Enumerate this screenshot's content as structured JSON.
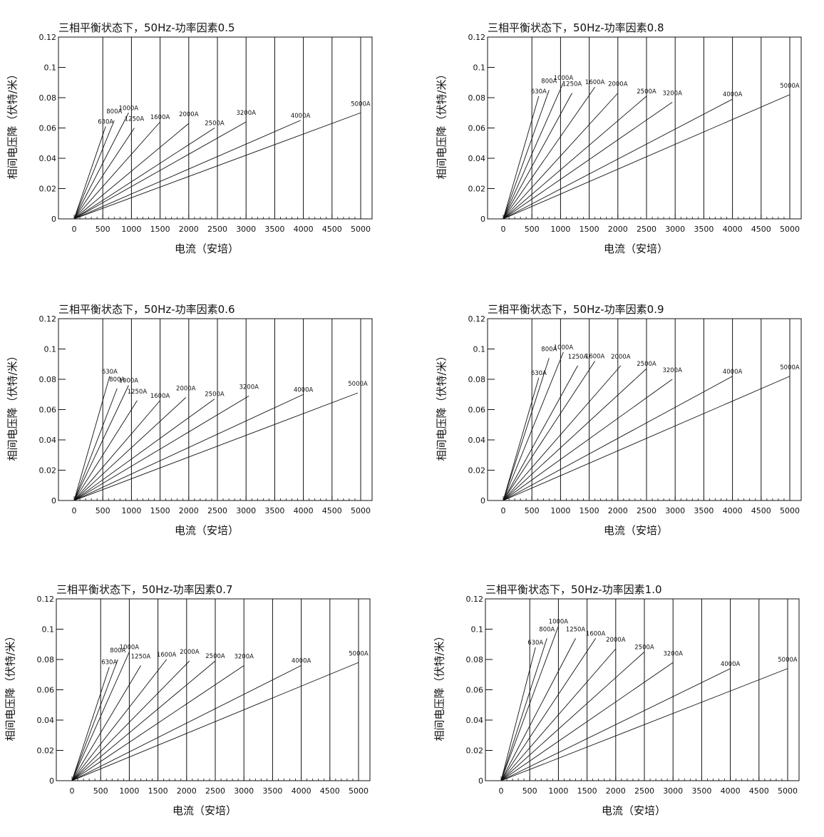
{
  "chart_data": [
    {
      "type": "line",
      "title": "三相平衡状态下，50Hz-功率因素0.5",
      "xlabel": "电流（安培）",
      "ylabel": "相间电压降（伏特/米）",
      "xlim": [
        0,
        5000
      ],
      "ylim": [
        0,
        0.12
      ],
      "xticks": [
        "0",
        "500",
        "1000",
        "1500",
        "2000",
        "2500",
        "3000",
        "3500",
        "4000",
        "4500",
        "5000"
      ],
      "yticks": [
        "0",
        "0.02",
        "0.04",
        "0.06",
        "0.08",
        "0.1",
        "0.12"
      ],
      "grid": "vertical",
      "series": [
        {
          "name": "630A",
          "x": [
            0,
            550
          ],
          "y": [
            0,
            0.061
          ]
        },
        {
          "name": "800A",
          "x": [
            0,
            700
          ],
          "y": [
            0,
            0.065
          ]
        },
        {
          "name": "1000A",
          "x": [
            0,
            950
          ],
          "y": [
            0,
            0.07
          ]
        },
        {
          "name": "1250A",
          "x": [
            0,
            1050
          ],
          "y": [
            0,
            0.06
          ]
        },
        {
          "name": "1600A",
          "x": [
            0,
            1500
          ],
          "y": [
            0,
            0.064
          ]
        },
        {
          "name": "2000A",
          "x": [
            0,
            2000
          ],
          "y": [
            0,
            0.063
          ]
        },
        {
          "name": "2500A",
          "x": [
            0,
            2450
          ],
          "y": [
            0,
            0.06
          ]
        },
        {
          "name": "3200A",
          "x": [
            0,
            3000
          ],
          "y": [
            0,
            0.064
          ]
        },
        {
          "name": "4000A",
          "x": [
            0,
            3950
          ],
          "y": [
            0,
            0.065
          ]
        },
        {
          "name": "5000A",
          "x": [
            0,
            5000
          ],
          "y": [
            0,
            0.07
          ]
        }
      ]
    },
    {
      "type": "line",
      "title": "三相平衡状态下，50Hz-功率因素0.8",
      "xlabel": "电流（安培）",
      "ylabel": "相间电压降（伏特/米）",
      "xlim": [
        0,
        5000
      ],
      "ylim": [
        0,
        0.12
      ],
      "xticks": [
        "0",
        "500",
        "1000",
        "1500",
        "2000",
        "2500",
        "3000",
        "3500",
        "4000",
        "4500",
        "5000"
      ],
      "yticks": [
        "0",
        "0.02",
        "0.04",
        "0.06",
        "0.08",
        "0.1",
        "0.12"
      ],
      "grid": "vertical",
      "series": [
        {
          "name": "630A",
          "x": [
            0,
            620
          ],
          "y": [
            0,
            0.081
          ]
        },
        {
          "name": "800A",
          "x": [
            0,
            800
          ],
          "y": [
            0,
            0.085
          ]
        },
        {
          "name": "1000A",
          "x": [
            0,
            1050
          ],
          "y": [
            0,
            0.09
          ]
        },
        {
          "name": "1250A",
          "x": [
            0,
            1200
          ],
          "y": [
            0,
            0.083
          ]
        },
        {
          "name": "1600A",
          "x": [
            0,
            1600
          ],
          "y": [
            0,
            0.087
          ]
        },
        {
          "name": "2000A",
          "x": [
            0,
            2000
          ],
          "y": [
            0,
            0.083
          ]
        },
        {
          "name": "2500A",
          "x": [
            0,
            2500
          ],
          "y": [
            0,
            0.081
          ]
        },
        {
          "name": "3200A",
          "x": [
            0,
            2950
          ],
          "y": [
            0,
            0.077
          ]
        },
        {
          "name": "4000A",
          "x": [
            0,
            4000
          ],
          "y": [
            0,
            0.079
          ]
        },
        {
          "name": "5000A",
          "x": [
            0,
            5000
          ],
          "y": [
            0,
            0.082
          ]
        }
      ]
    },
    {
      "type": "line",
      "title": "三相平衡状态下，50Hz-功率因素0.6",
      "xlabel": "电流（安培）",
      "ylabel": "相间电压降（伏特/米）",
      "xlim": [
        0,
        5000
      ],
      "ylim": [
        0,
        0.12
      ],
      "xticks": [
        "0",
        "500",
        "1000",
        "1500",
        "2000",
        "2500",
        "3000",
        "3500",
        "4000",
        "4500",
        "5000"
      ],
      "yticks": [
        "0",
        "0.02",
        "0.04",
        "0.06",
        "0.08",
        "0.1",
        "0.12"
      ],
      "grid": "vertical",
      "series": [
        {
          "name": "630A",
          "x": [
            0,
            620
          ],
          "y": [
            0,
            0.082
          ]
        },
        {
          "name": "800A",
          "x": [
            0,
            750
          ],
          "y": [
            0,
            0.074
          ]
        },
        {
          "name": "1000A",
          "x": [
            0,
            950
          ],
          "y": [
            0,
            0.076
          ]
        },
        {
          "name": "1250A",
          "x": [
            0,
            1100
          ],
          "y": [
            0,
            0.066
          ]
        },
        {
          "name": "1600A",
          "x": [
            0,
            1500
          ],
          "y": [
            0,
            0.066
          ]
        },
        {
          "name": "2000A",
          "x": [
            0,
            1950
          ],
          "y": [
            0,
            0.068
          ]
        },
        {
          "name": "2500A",
          "x": [
            0,
            2450
          ],
          "y": [
            0,
            0.067
          ]
        },
        {
          "name": "3200A",
          "x": [
            0,
            3050
          ],
          "y": [
            0,
            0.069
          ]
        },
        {
          "name": "4000A",
          "x": [
            0,
            4000
          ],
          "y": [
            0,
            0.07
          ]
        },
        {
          "name": "5000A",
          "x": [
            0,
            4950
          ],
          "y": [
            0,
            0.071
          ]
        }
      ]
    },
    {
      "type": "line",
      "title": "三相平衡状态下，50Hz-功率因素0.9",
      "xlabel": "电流（安培）",
      "ylabel": "相间电压降（伏特/米）",
      "xlim": [
        0,
        5000
      ],
      "ylim": [
        0,
        0.12
      ],
      "xticks": [
        "0",
        "500",
        "1000",
        "1500",
        "2000",
        "2500",
        "3000",
        "3500",
        "4000",
        "4500",
        "5000"
      ],
      "yticks": [
        "0",
        "0.02",
        "0.04",
        "0.06",
        "0.08",
        "0.1",
        "0.12"
      ],
      "grid": "vertical",
      "series": [
        {
          "name": "630A",
          "x": [
            0,
            620
          ],
          "y": [
            0,
            0.081
          ]
        },
        {
          "name": "800A",
          "x": [
            0,
            800
          ],
          "y": [
            0,
            0.094
          ]
        },
        {
          "name": "1000A",
          "x": [
            0,
            1050
          ],
          "y": [
            0,
            0.098
          ]
        },
        {
          "name": "1250A",
          "x": [
            0,
            1300
          ],
          "y": [
            0,
            0.089
          ]
        },
        {
          "name": "1600A",
          "x": [
            0,
            1600
          ],
          "y": [
            0,
            0.092
          ]
        },
        {
          "name": "2000A",
          "x": [
            0,
            2050
          ],
          "y": [
            0,
            0.089
          ]
        },
        {
          "name": "2500A",
          "x": [
            0,
            2500
          ],
          "y": [
            0,
            0.087
          ]
        },
        {
          "name": "3200A",
          "x": [
            0,
            2950
          ],
          "y": [
            0,
            0.08
          ]
        },
        {
          "name": "4000A",
          "x": [
            0,
            4000
          ],
          "y": [
            0,
            0.082
          ]
        },
        {
          "name": "5000A",
          "x": [
            0,
            5000
          ],
          "y": [
            0,
            0.082
          ]
        }
      ]
    },
    {
      "type": "line",
      "title": "三相平衡状态下，50Hz-功率因素0.7",
      "xlabel": "电流（安培）",
      "ylabel": "相间电压降（伏特/米）",
      "xlim": [
        0,
        5000
      ],
      "ylim": [
        0,
        0.12
      ],
      "xticks": [
        "0",
        "500",
        "1000",
        "1500",
        "2000",
        "2500",
        "3000",
        "3500",
        "4000",
        "4500",
        "5000"
      ],
      "yticks": [
        "0",
        "0.02",
        "0.04",
        "0.06",
        "0.08",
        "0.1",
        "0.12"
      ],
      "grid": "vertical",
      "series": [
        {
          "name": "630A",
          "x": [
            0,
            650
          ],
          "y": [
            0,
            0.075
          ]
        },
        {
          "name": "800A",
          "x": [
            0,
            800
          ],
          "y": [
            0,
            0.08
          ]
        },
        {
          "name": "1000A",
          "x": [
            0,
            1000
          ],
          "y": [
            0,
            0.085
          ]
        },
        {
          "name": "1250A",
          "x": [
            0,
            1200
          ],
          "y": [
            0,
            0.076
          ]
        },
        {
          "name": "1600A",
          "x": [
            0,
            1650
          ],
          "y": [
            0,
            0.08
          ]
        },
        {
          "name": "2000A",
          "x": [
            0,
            2050
          ],
          "y": [
            0,
            0.079
          ]
        },
        {
          "name": "2500A",
          "x": [
            0,
            2500
          ],
          "y": [
            0,
            0.079
          ]
        },
        {
          "name": "3200A",
          "x": [
            0,
            3000
          ],
          "y": [
            0,
            0.076
          ]
        },
        {
          "name": "4000A",
          "x": [
            0,
            4000
          ],
          "y": [
            0,
            0.076
          ]
        },
        {
          "name": "5000A",
          "x": [
            0,
            5000
          ],
          "y": [
            0,
            0.078
          ]
        }
      ]
    },
    {
      "type": "line",
      "title": "三相平衡状态下，50Hz-功率因素1.0",
      "xlabel": "电流（安培）",
      "ylabel": "相间电压降（伏特/米）",
      "xlim": [
        0,
        5000
      ],
      "ylim": [
        0,
        0.12
      ],
      "xticks": [
        "0",
        "500",
        "1000",
        "1500",
        "2000",
        "2500",
        "3000",
        "3500",
        "4000",
        "4500",
        "5000"
      ],
      "yticks": [
        "0",
        "0.02",
        "0.04",
        "0.06",
        "0.08",
        "0.1",
        "0.12"
      ],
      "grid": "vertical",
      "series": [
        {
          "name": "630A",
          "x": [
            0,
            600
          ],
          "y": [
            0,
            0.088
          ]
        },
        {
          "name": "800A",
          "x": [
            0,
            800
          ],
          "y": [
            0,
            0.094
          ]
        },
        {
          "name": "1000A",
          "x": [
            0,
            1000
          ],
          "y": [
            0,
            0.102
          ]
        },
        {
          "name": "1250A",
          "x": [
            0,
            1300
          ],
          "y": [
            0,
            0.094
          ]
        },
        {
          "name": "1600A",
          "x": [
            0,
            1650
          ],
          "y": [
            0,
            0.094
          ]
        },
        {
          "name": "2000A",
          "x": [
            0,
            2000
          ],
          "y": [
            0,
            0.087
          ]
        },
        {
          "name": "2500A",
          "x": [
            0,
            2500
          ],
          "y": [
            0,
            0.085
          ]
        },
        {
          "name": "3200A",
          "x": [
            0,
            3000
          ],
          "y": [
            0,
            0.078
          ]
        },
        {
          "name": "4000A",
          "x": [
            0,
            4000
          ],
          "y": [
            0,
            0.074
          ]
        },
        {
          "name": "5000A",
          "x": [
            0,
            5000
          ],
          "y": [
            0,
            0.074
          ]
        }
      ]
    }
  ]
}
